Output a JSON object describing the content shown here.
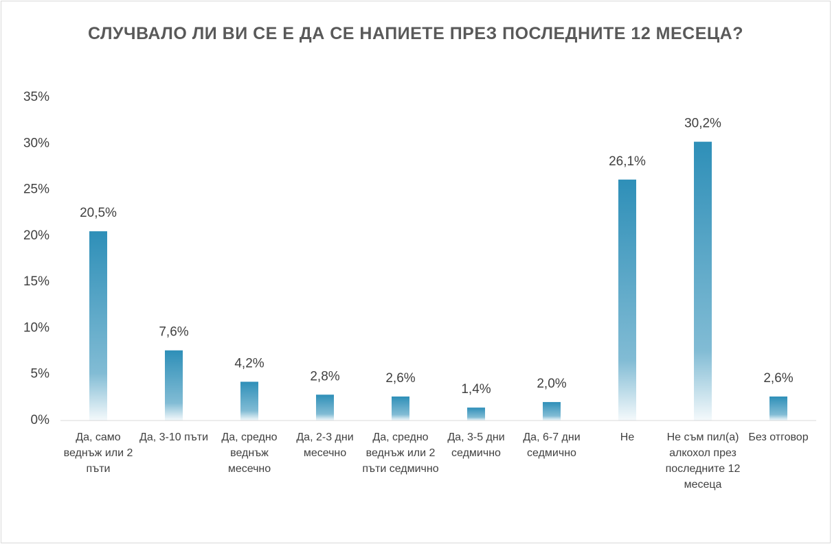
{
  "chart_data": {
    "type": "bar",
    "title": "СЛУЧВАЛО ЛИ ВИ СЕ Е ДА СЕ НАПИЕТЕ ПРЕЗ ПОСЛЕДНИТЕ 12 МЕСЕЦА?",
    "categories": [
      "Да, само веднъж или 2 пъти",
      "Да, 3-10 пъти",
      "Да, средно веднъж месечно",
      "Да, 2-3 дни месечно",
      "Да, средно веднъж или 2 пъти седмично",
      "Да, 3-5 дни седмично",
      "Да, 6-7 дни седмично",
      "Не",
      "Не съм пил(а) алкохол през последните 12 месеца",
      "Без отговор"
    ],
    "values": [
      20.5,
      7.6,
      4.2,
      2.8,
      2.6,
      1.4,
      2.0,
      26.1,
      30.2,
      2.6
    ],
    "value_labels": [
      "20,5%",
      "7,6%",
      "4,2%",
      "2,8%",
      "2,6%",
      "1,4%",
      "2,0%",
      "26,1%",
      "30,2%",
      "2,6%"
    ],
    "color": "#2e8fb8",
    "ylim": [
      0,
      35
    ],
    "yticks": [
      {
        "value": 0,
        "label": "0%"
      },
      {
        "value": 5,
        "label": "5%"
      },
      {
        "value": 10,
        "label": "10%"
      },
      {
        "value": 15,
        "label": "15%"
      },
      {
        "value": 20,
        "label": "20%"
      },
      {
        "value": 25,
        "label": "25%"
      },
      {
        "value": 30,
        "label": "30%"
      },
      {
        "value": 35,
        "label": "35%"
      }
    ],
    "grid": false
  }
}
